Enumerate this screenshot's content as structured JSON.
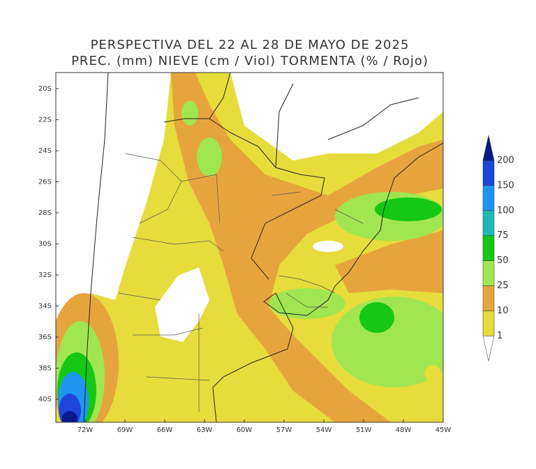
{
  "title": [
    "PERSPECTIVA DEL 22 AL 28 DE MAYO DE 2025",
    "PREC. (mm) NIEVE (cm / Viol) TORMENTA (% / Rojo)"
  ],
  "latitude_labels": [
    "20S",
    "22S",
    "24S",
    "26S",
    "28S",
    "30S",
    "32S",
    "34S",
    "36S",
    "38S",
    "40S"
  ],
  "longitude_labels": [
    "72W",
    "69W",
    "66W",
    "63W",
    "60W",
    "57W",
    "54W",
    "51W",
    "48W",
    "45W"
  ],
  "legend": {
    "labels": [
      200,
      150,
      100,
      75,
      50,
      25,
      10,
      1
    ],
    "colors": [
      "#0a1a8c",
      "#1e46dc",
      "#1e96f0",
      "#20b8b8",
      "#14c814",
      "#a0e650",
      "#e6a53c",
      "#e6dc3c",
      "#ffffff"
    ]
  }
}
